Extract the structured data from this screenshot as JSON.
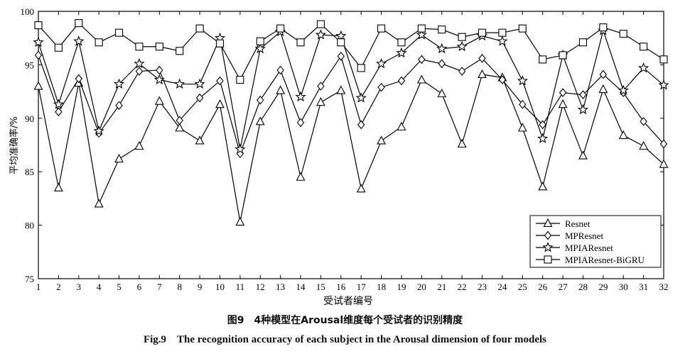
{
  "chart_data": {
    "type": "line",
    "xlabel": "受试者编号",
    "ylabel": "平均准确率/%",
    "x": [
      1,
      2,
      3,
      4,
      5,
      6,
      7,
      8,
      9,
      10,
      11,
      12,
      13,
      14,
      15,
      16,
      17,
      18,
      19,
      20,
      21,
      22,
      23,
      24,
      25,
      26,
      27,
      28,
      29,
      30,
      31,
      32
    ],
    "xlim": [
      1,
      32
    ],
    "ylim": [
      75,
      100
    ],
    "yticks": [
      75,
      80,
      85,
      90,
      95,
      100
    ],
    "grid": false,
    "legend_position": "bottom-right",
    "series": [
      {
        "name": "Resnet",
        "marker": "triangle",
        "values": [
          93.0,
          83.5,
          93.3,
          82.0,
          86.2,
          87.4,
          91.6,
          89.1,
          87.9,
          91.3,
          80.3,
          89.7,
          92.6,
          84.5,
          91.5,
          92.6,
          83.4,
          87.9,
          89.2,
          93.6,
          92.3,
          87.6,
          94.1,
          93.8,
          89.1,
          83.6,
          91.3,
          86.5,
          92.7,
          88.4,
          87.4,
          85.7
        ]
      },
      {
        "name": "MPResnet",
        "marker": "diamond",
        "values": [
          95.9,
          90.6,
          93.7,
          88.6,
          91.2,
          94.4,
          94.5,
          89.8,
          91.9,
          93.5,
          86.7,
          91.7,
          94.5,
          89.6,
          93.0,
          95.8,
          89.4,
          92.9,
          93.5,
          95.5,
          95.1,
          94.4,
          95.6,
          93.6,
          91.3,
          89.4,
          92.4,
          92.2,
          94.1,
          92.4,
          89.7,
          87.6
        ]
      },
      {
        "name": "MPIAResnet",
        "marker": "star",
        "values": [
          97.1,
          91.3,
          97.2,
          88.8,
          93.2,
          95.1,
          93.6,
          93.2,
          93.2,
          97.5,
          87.1,
          96.5,
          98.1,
          92.0,
          97.8,
          97.7,
          91.9,
          95.1,
          96.1,
          97.8,
          96.5,
          96.7,
          97.7,
          97.2,
          93.5,
          88.1,
          95.9,
          90.8,
          98.2,
          92.6,
          94.7,
          93.1
        ]
      },
      {
        "name": "MPIAResnet-BiGRU",
        "marker": "square",
        "values": [
          98.7,
          96.6,
          98.9,
          97.1,
          98.0,
          96.7,
          96.7,
          96.3,
          98.4,
          97.0,
          93.6,
          97.2,
          98.4,
          97.1,
          98.8,
          97.1,
          94.7,
          98.4,
          97.1,
          98.4,
          98.3,
          97.6,
          98.0,
          98.0,
          98.4,
          95.5,
          95.9,
          97.1,
          98.5,
          97.9,
          96.7,
          95.5
        ]
      }
    ]
  },
  "caption": {
    "cn": "图9　4种模型在Arousal维度每个受试者的识别精度",
    "en": "Fig.9　The recognition accuracy of each subject in the Arousal dimension of four models"
  }
}
